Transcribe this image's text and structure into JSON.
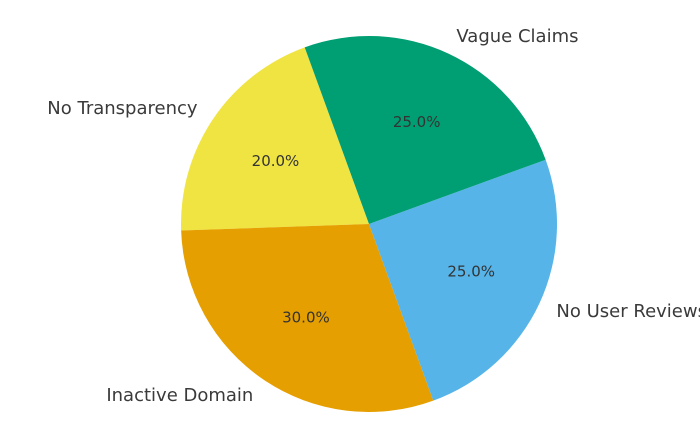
{
  "chart_data": {
    "type": "pie",
    "title": "",
    "slices": [
      {
        "label": "No Transparency",
        "value": 20.0,
        "pct_label": "20.0%",
        "color": "#F0E442"
      },
      {
        "label": "Inactive Domain",
        "value": 30.0,
        "pct_label": "30.0%",
        "color": "#E69F00"
      },
      {
        "label": "No User Reviews",
        "value": 25.0,
        "pct_label": "25.0%",
        "color": "#56B4E9"
      },
      {
        "label": "Vague Claims",
        "value": 25.0,
        "pct_label": "25.0%",
        "color": "#009E73"
      }
    ],
    "start_angle_deg": 110,
    "direction": "counterclockwise",
    "legend": "none"
  }
}
